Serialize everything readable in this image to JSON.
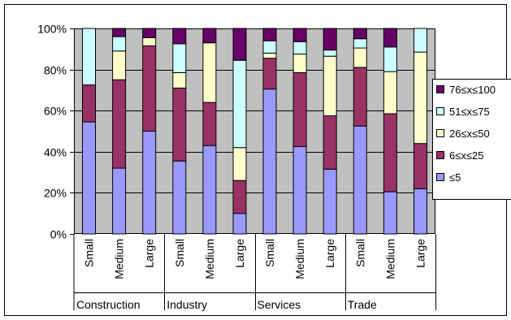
{
  "chart_data": {
    "type": "bar",
    "stacked": true,
    "percent": true,
    "grid": true,
    "legend_position": "right",
    "ylim": [
      0,
      100
    ],
    "y_ticks": [
      "0%",
      "20%",
      "40%",
      "60%",
      "80%",
      "100%"
    ],
    "groups": [
      {
        "name": "Construction",
        "categories": [
          "Small",
          "Medium",
          "Large"
        ]
      },
      {
        "name": "Industry",
        "categories": [
          "Small",
          "Medium",
          "Large"
        ]
      },
      {
        "name": "Services",
        "categories": [
          "Small",
          "Medium",
          "Large"
        ]
      },
      {
        "name": "Trade",
        "categories": [
          "Small",
          "Medium",
          "Large"
        ]
      }
    ],
    "series": [
      {
        "name": "≤5",
        "color": "#9999ff",
        "values": [
          54.5,
          32,
          50,
          35.5,
          43,
          10,
          70.5,
          42.5,
          31.5,
          52.5,
          20.5,
          22
        ]
      },
      {
        "name": "6≤x≤25",
        "color": "#993366",
        "values": [
          18,
          43,
          41.5,
          35.5,
          21,
          16,
          15,
          36,
          26,
          28.5,
          38,
          22
        ]
      },
      {
        "name": "26≤x≤50",
        "color": "#ffffcc",
        "values": [
          0,
          14,
          4,
          7.5,
          29,
          16,
          2.5,
          9,
          29,
          9.5,
          20.5,
          44.5
        ]
      },
      {
        "name": "51≤x≤75",
        "color": "#ccffff",
        "values": [
          27.5,
          7,
          0,
          14,
          0,
          42.5,
          6,
          6,
          3,
          4.5,
          12,
          11.5
        ]
      },
      {
        "name": "76≤x≤100",
        "color": "#660066",
        "values": [
          0,
          4,
          4.5,
          7.5,
          7,
          15.5,
          6,
          6.5,
          10.5,
          5,
          9,
          0
        ]
      }
    ]
  }
}
